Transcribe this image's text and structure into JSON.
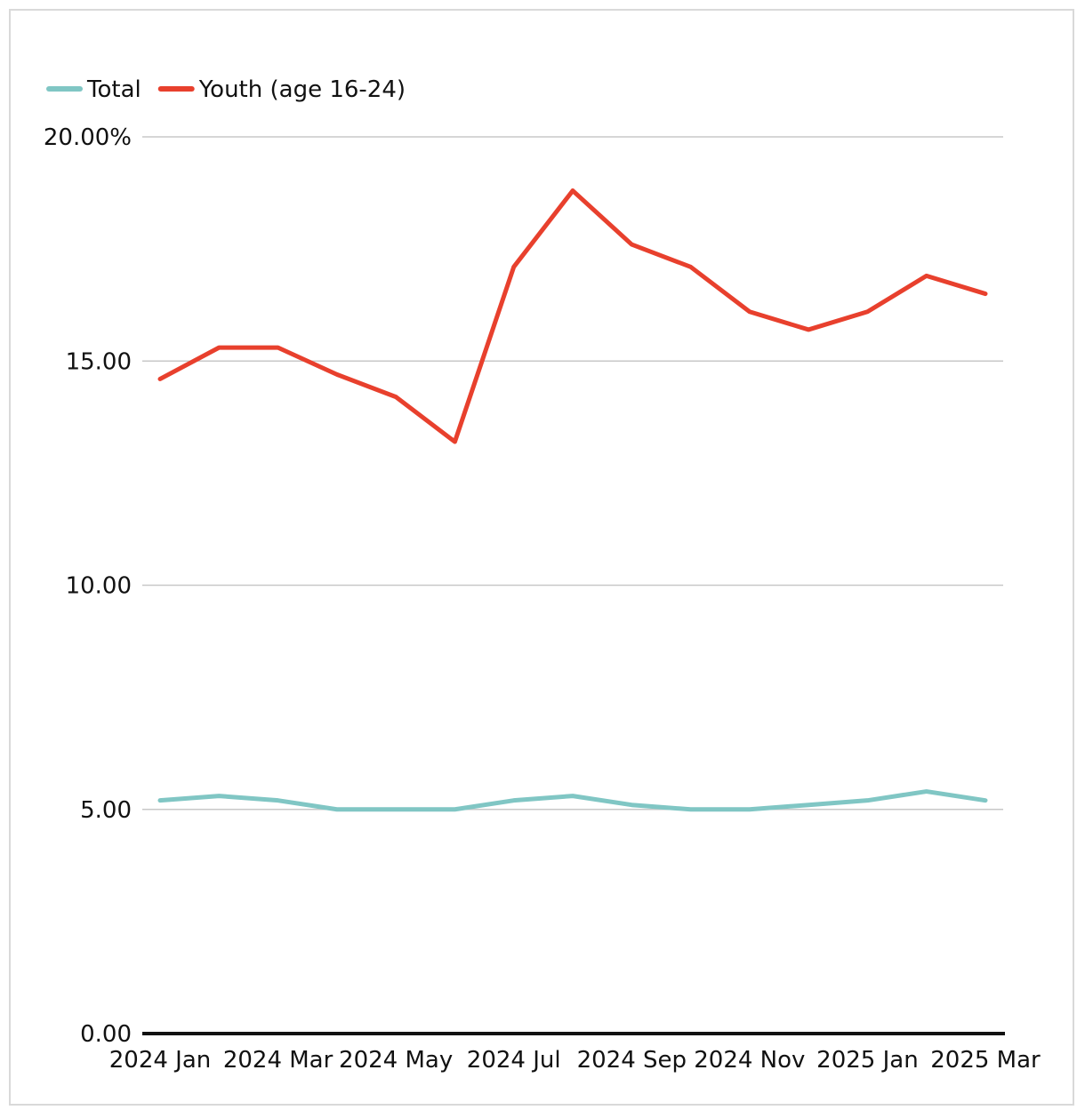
{
  "chart_data": {
    "type": "line",
    "title": "",
    "xlabel": "",
    "ylabel": "",
    "categories": [
      "2024 Jan",
      "2024 Feb",
      "2024 Mar",
      "2024 Apr",
      "2024 May",
      "2024 Jun",
      "2024 Jul",
      "2024 Aug",
      "2024 Sep",
      "2024 Oct",
      "2024 Nov",
      "2024 Dec",
      "2025 Jan",
      "2025 Feb",
      "2025 Mar"
    ],
    "x_tick_labels": [
      "2024 Jan",
      "2024 Mar",
      "2024 May",
      "2024 Jul",
      "2024 Sep",
      "2024 Nov",
      "2025 Jan",
      "2025 Mar"
    ],
    "y_ticks": [
      0,
      5,
      10,
      15,
      20
    ],
    "y_tick_labels": [
      "0.00",
      "5.00",
      "10.00",
      "15.00",
      "20.00%"
    ],
    "ylim": [
      0,
      20
    ],
    "grid": true,
    "legend_position": "top-left",
    "series": [
      {
        "name": "Total",
        "color": "#80c6c4",
        "values": [
          5.2,
          5.3,
          5.2,
          5.0,
          5.0,
          5.0,
          5.2,
          5.3,
          5.1,
          5.0,
          5.0,
          5.1,
          5.2,
          5.4,
          5.2
        ]
      },
      {
        "name": "Youth (age 16-24)",
        "color": "#e8402d",
        "values": [
          14.6,
          15.3,
          15.3,
          14.7,
          14.2,
          13.2,
          17.1,
          18.8,
          17.6,
          17.1,
          16.1,
          15.7,
          16.1,
          16.9,
          16.5
        ]
      }
    ]
  }
}
